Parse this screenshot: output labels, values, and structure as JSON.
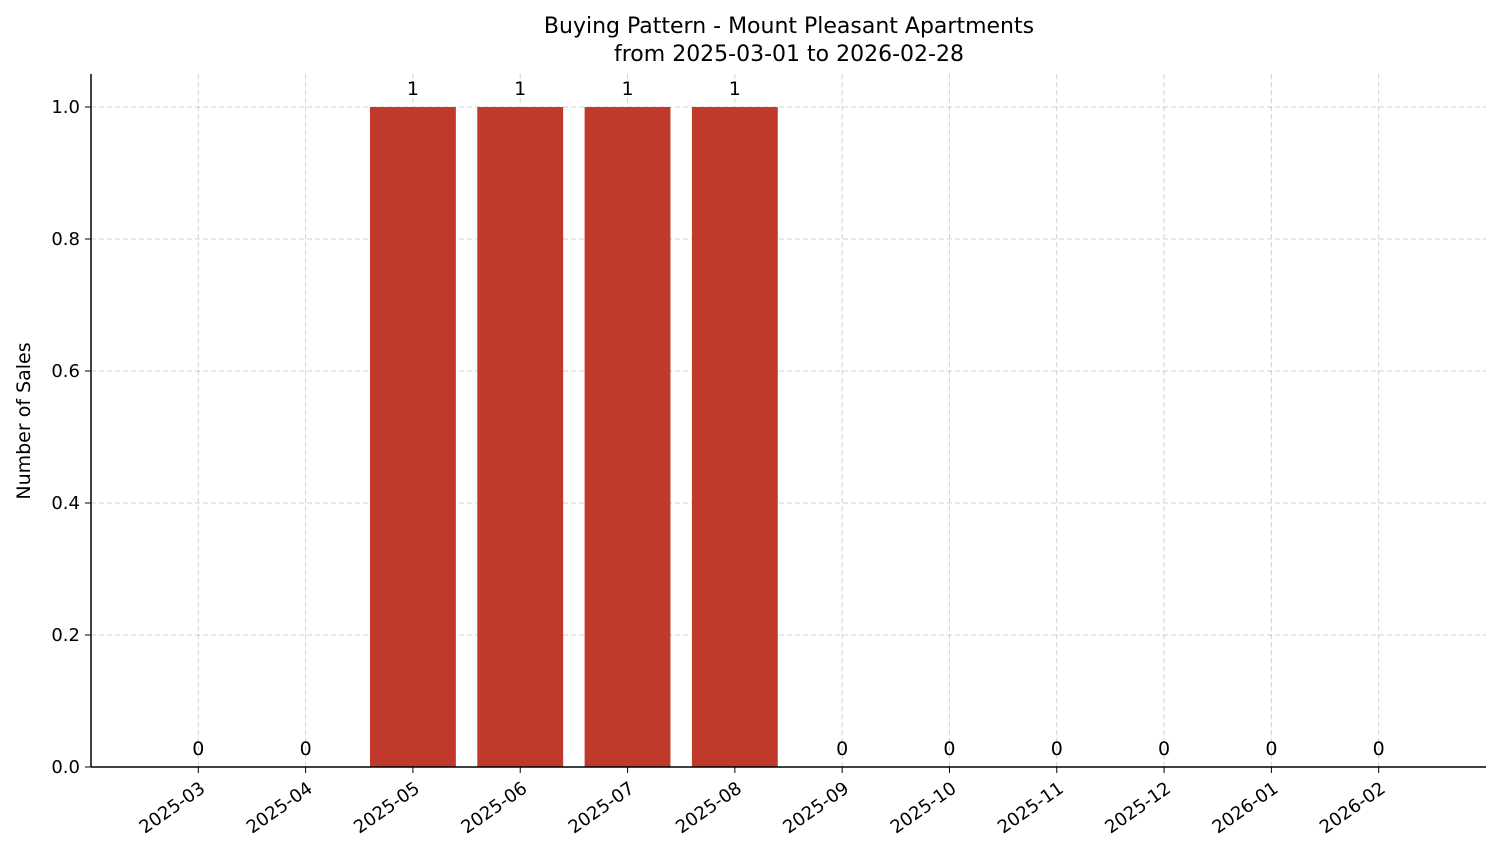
{
  "chart_data": {
    "type": "bar",
    "title": "Buying Pattern - Mount Pleasant Apartments",
    "subtitle": "from 2025-03-01 to 2026-02-28",
    "y_label": "Number of Sales",
    "categories": [
      "2025-03",
      "2025-04",
      "2025-05",
      "2025-06",
      "2025-07",
      "2025-08",
      "2025-09",
      "2025-10",
      "2025-11",
      "2025-12",
      "2026-01",
      "2026-02"
    ],
    "values": [
      0,
      0,
      1,
      1,
      1,
      1,
      0,
      0,
      0,
      0,
      0,
      0
    ],
    "color": "#c0392b",
    "ylim": [
      0,
      1.05
    ],
    "yticks": [
      {
        "value": 0,
        "label": "0.0"
      },
      0.2,
      0.4,
      0.6,
      0.8,
      {
        "value": 1,
        "label": "1.0"
      }
    ],
    "grid": true
  }
}
